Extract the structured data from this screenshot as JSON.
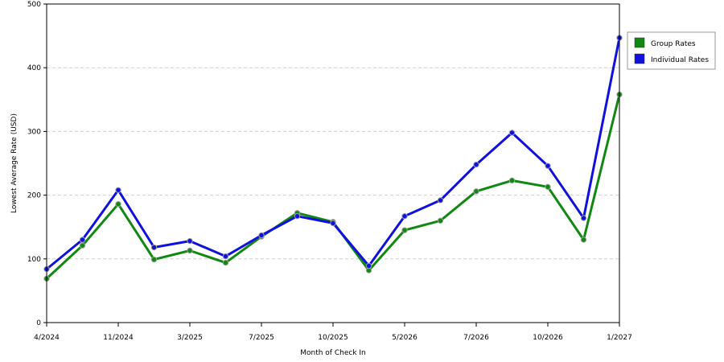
{
  "chart_data": {
    "type": "line",
    "xlabel": "Month of Check In",
    "ylabel": "Lowest Average Rate (USD)",
    "ylim": [
      0,
      500
    ],
    "y_ticks": [
      0,
      100,
      200,
      300,
      400,
      500
    ],
    "x_ticks": [
      "4/2024",
      "11/2024",
      "3/2025",
      "7/2025",
      "10/2025",
      "5/2026",
      "7/2026",
      "10/2026",
      "1/2027"
    ],
    "grid": "horizontal dashed",
    "legend_position": "right",
    "series": [
      {
        "name": "Group Rates",
        "color": "#118811",
        "values": [
          69,
          121,
          186,
          99,
          113,
          94,
          135,
          172,
          158,
          82,
          145,
          160,
          206,
          223,
          213,
          130,
          358
        ]
      },
      {
        "name": "Individual Rates",
        "color": "#1111dd",
        "values": [
          84,
          130,
          208,
          118,
          128,
          104,
          137,
          167,
          156,
          89,
          167,
          192,
          248,
          298,
          246,
          164,
          447
        ]
      }
    ]
  }
}
